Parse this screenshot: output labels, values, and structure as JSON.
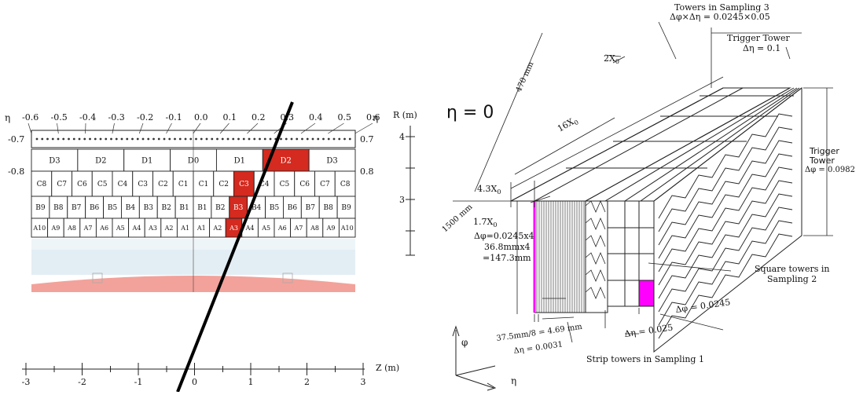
{
  "left_panel": {
    "eta_symbol": "η",
    "eta_ticks_top": [
      "-0.6",
      "-0.5",
      "-0.4",
      "-0.3",
      "-0.2",
      "-0.1",
      "0.0",
      "0.1",
      "0.2",
      "0.3",
      "0.4",
      "0.5",
      "0.6"
    ],
    "eta_side_left": [
      "-0.7",
      "-0.8"
    ],
    "eta_side_right": [
      "0.7",
      "0.8"
    ],
    "d_row": [
      "D3",
      "D2",
      "D1",
      "D0",
      "D1",
      "D2",
      "D3"
    ],
    "c_row": [
      "C8",
      "C7",
      "C6",
      "C5",
      "C4",
      "C3",
      "C2",
      "C1",
      "C1",
      "C2",
      "C3",
      "C4",
      "C5",
      "C6",
      "C7",
      "C8"
    ],
    "b_row": [
      "B9",
      "B8",
      "B7",
      "B6",
      "B5",
      "B4",
      "B3",
      "B2",
      "B1",
      "B1",
      "B2",
      "B3",
      "B4",
      "B5",
      "B6",
      "B7",
      "B8",
      "B9"
    ],
    "a_row": [
      "A10",
      "A9",
      "A8",
      "A7",
      "A6",
      "A5",
      "A4",
      "A3",
      "A2",
      "A1",
      "A1",
      "A2",
      "A3",
      "A4",
      "A5",
      "A6",
      "A7",
      "A8",
      "A9",
      "A10"
    ],
    "r_axis": {
      "label": "R (m)",
      "ticks": [
        "4",
        "3"
      ]
    },
    "z_axis": {
      "label": "Z (m)",
      "ticks": [
        "-3",
        "-2",
        "-1",
        "0",
        "1",
        "2",
        "3"
      ]
    },
    "highlight_color": "#d42a1f",
    "floor_color": "#f2a29a",
    "band_color": "#e3eef4"
  },
  "right_panel": {
    "eta_zero": "η = 0",
    "labels": {
      "towers_s3_line1": "Towers in Sampling 3",
      "towers_s3_line2": "Δφ×Δη = 0.0245×0.05",
      "trigger_top_line1": "Trigger Tower",
      "trigger_top_line2": "Δη = 0.1",
      "two_x0": "2X",
      "sixteen_x0": "16X",
      "mm470": "470 mm",
      "trigger_side_line1": "Trigger",
      "trigger_side_line2": "Tower",
      "trigger_side_line3": "Δφ = 0.0982",
      "four_x0": "4.3X",
      "mm1500": "1500 mm",
      "strip_line1": "1.7X",
      "strip_line2": "Δφ=0.0245x4",
      "strip_line3": "36.8mmx4",
      "strip_line4": "=147.3mm",
      "square_line1": "Square towers in",
      "square_line2": "Sampling 2",
      "dphi": "Δφ = 0.0245",
      "deta": "Δη = 0.025",
      "strip_size_line1": "37.5mm/8 = 4.69 mm",
      "strip_size_line2": "Δη = 0.0031",
      "strip_s1": "Strip towers in Sampling 1",
      "x0_sub": "0",
      "axis_phi": "φ",
      "axis_eta": "η"
    },
    "highlight_color": "#ff00ff"
  }
}
